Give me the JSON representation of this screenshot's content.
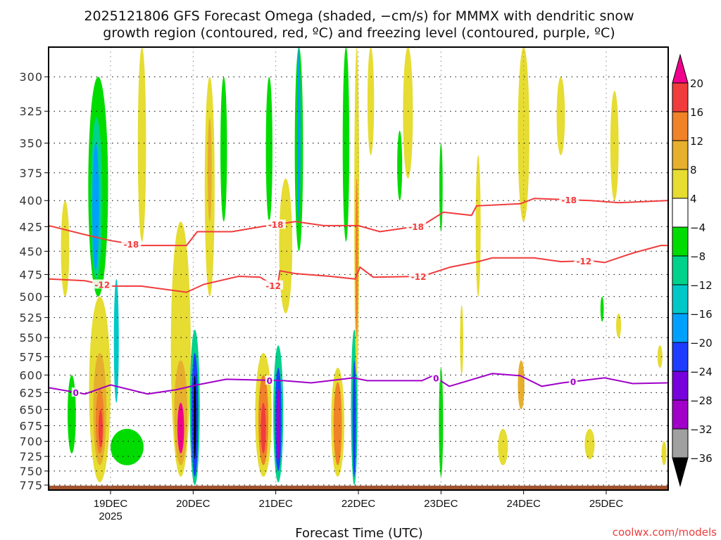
{
  "chart_data": {
    "type": "heatmap",
    "title_lines": [
      "2025121806 GFS Forecast Omega (shaded, −cm/s) for MMMX with dendritic snow",
      "growth region (contoured, red, ºC) and freezing level (contoured, purple, ºC)"
    ],
    "xlabel": "Forecast Time (UTC)",
    "x_units": "days since 19DEC 00Z",
    "xlim": [
      -0.75,
      6.75
    ],
    "x_ticks": [
      {
        "day": 0,
        "label": "19DEC",
        "sub": "2025"
      },
      {
        "day": 1,
        "label": "20DEC"
      },
      {
        "day": 2,
        "label": "21DEC"
      },
      {
        "day": 3,
        "label": "22DEC"
      },
      {
        "day": 4,
        "label": "23DEC"
      },
      {
        "day": 5,
        "label": "24DEC"
      },
      {
        "day": 6,
        "label": "25DEC"
      }
    ],
    "ylabel": "Pressure (hPa)",
    "ylim": [
      280,
      784
    ],
    "y_ticks": [
      "300",
      "325",
      "350",
      "375",
      "400",
      "425",
      "450",
      "475",
      "500",
      "525",
      "550",
      "575",
      "600",
      "625",
      "650",
      "675",
      "700",
      "725",
      "750",
      "775"
    ],
    "grid": true,
    "surface_pressure": 776,
    "colorbar": {
      "labels": [
        "20",
        "16",
        "12",
        "8",
        "4",
        "-4",
        "-8",
        "-12",
        "-16",
        "-20",
        "-24",
        "-28",
        "-32",
        "-36"
      ],
      "colors": [
        "#f03c3c",
        "#f08228",
        "#e6af2d",
        "#e6dc32",
        "#ffffff",
        "#00dc00",
        "#00d28c",
        "#00c8c8",
        "#00a0ff",
        "#1e3cff",
        "#7800dc",
        "#a000c8",
        "#a0a0a0"
      ],
      "over_color": "#f0008c",
      "under_color": "#000000"
    },
    "shading_features": [
      {
        "day": -0.15,
        "p1": 300,
        "p2": 500,
        "hw": 0.12,
        "value": -6
      },
      {
        "day": -0.17,
        "p1": 330,
        "p2": 480,
        "hw": 0.07,
        "value": -10
      },
      {
        "day": -0.18,
        "p1": 350,
        "p2": 470,
        "hw": 0.04,
        "value": -18
      },
      {
        "day": -0.55,
        "p1": 400,
        "p2": 500,
        "hw": 0.05,
        "value": 5
      },
      {
        "day": -0.47,
        "p1": 600,
        "p2": 720,
        "hw": 0.05,
        "value": -6
      },
      {
        "day": 0.2,
        "p1": 680,
        "p2": 740,
        "hw": 0.2,
        "value": -6
      },
      {
        "day": -0.13,
        "p1": 500,
        "p2": 770,
        "hw": 0.13,
        "value": 6
      },
      {
        "day": -0.13,
        "p1": 570,
        "p2": 740,
        "hw": 0.08,
        "value": 10
      },
      {
        "day": -0.13,
        "p1": 620,
        "p2": 720,
        "hw": 0.05,
        "value": 14
      },
      {
        "day": -0.12,
        "p1": 650,
        "p2": 710,
        "hw": 0.025,
        "value": 18
      },
      {
        "day": 0.07,
        "p1": 480,
        "p2": 640,
        "hw": 0.03,
        "value": -14
      },
      {
        "day": 0.85,
        "p1": 420,
        "p2": 760,
        "hw": 0.12,
        "value": 6
      },
      {
        "day": 0.85,
        "p1": 580,
        "p2": 740,
        "hw": 0.08,
        "value": 11
      },
      {
        "day": 0.85,
        "p1": 640,
        "p2": 720,
        "hw": 0.04,
        "value": 21
      },
      {
        "day": 1.02,
        "p1": 540,
        "p2": 775,
        "hw": 0.06,
        "value": -10
      },
      {
        "day": 1.02,
        "p1": 570,
        "p2": 760,
        "hw": 0.04,
        "value": -22
      },
      {
        "day": 1.02,
        "p1": 600,
        "p2": 730,
        "hw": 0.015,
        "value": -40
      },
      {
        "day": 1.2,
        "p1": 300,
        "p2": 500,
        "hw": 0.06,
        "value": 6
      },
      {
        "day": 1.2,
        "p1": 330,
        "p2": 420,
        "hw": 0.025,
        "value": 10
      },
      {
        "day": 0.38,
        "p1": 280,
        "p2": 440,
        "hw": 0.05,
        "value": 5
      },
      {
        "day": 1.37,
        "p1": 300,
        "p2": 420,
        "hw": 0.04,
        "value": -6
      },
      {
        "day": 1.85,
        "p1": 570,
        "p2": 760,
        "hw": 0.1,
        "value": 6
      },
      {
        "day": 1.85,
        "p1": 600,
        "p2": 740,
        "hw": 0.06,
        "value": 12
      },
      {
        "day": 1.85,
        "p1": 640,
        "p2": 720,
        "hw": 0.03,
        "value": 18
      },
      {
        "day": 2.03,
        "p1": 560,
        "p2": 770,
        "hw": 0.06,
        "value": -10
      },
      {
        "day": 2.03,
        "p1": 590,
        "p2": 750,
        "hw": 0.04,
        "value": -22
      },
      {
        "day": 2.03,
        "p1": 620,
        "p2": 730,
        "hw": 0.02,
        "value": -30
      },
      {
        "day": 2.28,
        "p1": 280,
        "p2": 450,
        "hw": 0.05,
        "value": -6
      },
      {
        "day": 2.28,
        "p1": 280,
        "p2": 420,
        "hw": 0.02,
        "value": -20
      },
      {
        "day": 2.12,
        "p1": 380,
        "p2": 520,
        "hw": 0.08,
        "value": 6
      },
      {
        "day": 1.92,
        "p1": 300,
        "p2": 420,
        "hw": 0.04,
        "value": -6
      },
      {
        "day": 2.75,
        "p1": 590,
        "p2": 760,
        "hw": 0.08,
        "value": 6
      },
      {
        "day": 2.75,
        "p1": 610,
        "p2": 740,
        "hw": 0.05,
        "value": 12
      },
      {
        "day": 2.95,
        "p1": 540,
        "p2": 775,
        "hw": 0.04,
        "value": -10
      },
      {
        "day": 2.95,
        "p1": 580,
        "p2": 760,
        "hw": 0.02,
        "value": -22
      },
      {
        "day": 2.98,
        "p1": 280,
        "p2": 600,
        "hw": 0.03,
        "value": 6
      },
      {
        "day": 2.98,
        "p1": 380,
        "p2": 550,
        "hw": 0.015,
        "value": 14
      },
      {
        "day": 2.85,
        "p1": 280,
        "p2": 440,
        "hw": 0.04,
        "value": -6
      },
      {
        "day": 3.6,
        "p1": 280,
        "p2": 380,
        "hw": 0.06,
        "value": 6
      },
      {
        "day": 3.15,
        "p1": 280,
        "p2": 360,
        "hw": 0.04,
        "value": 5
      },
      {
        "day": 3.5,
        "p1": 340,
        "p2": 400,
        "hw": 0.03,
        "value": -6
      },
      {
        "day": 4.0,
        "p1": 590,
        "p2": 760,
        "hw": 0.025,
        "value": -8
      },
      {
        "day": 4.0,
        "p1": 350,
        "p2": 430,
        "hw": 0.02,
        "value": -6
      },
      {
        "day": 4.25,
        "p1": 510,
        "p2": 600,
        "hw": 0.02,
        "value": 6
      },
      {
        "day": 4.45,
        "p1": 360,
        "p2": 500,
        "hw": 0.03,
        "value": 6
      },
      {
        "day": 4.75,
        "p1": 680,
        "p2": 740,
        "hw": 0.06,
        "value": 6
      },
      {
        "day": 4.97,
        "p1": 580,
        "p2": 650,
        "hw": 0.04,
        "value": 8
      },
      {
        "day": 5.0,
        "p1": 280,
        "p2": 420,
        "hw": 0.07,
        "value": 6
      },
      {
        "day": 5.45,
        "p1": 300,
        "p2": 360,
        "hw": 0.05,
        "value": 6
      },
      {
        "day": 5.8,
        "p1": 680,
        "p2": 730,
        "hw": 0.06,
        "value": 6
      },
      {
        "day": 6.1,
        "p1": 310,
        "p2": 400,
        "hw": 0.05,
        "value": 6
      },
      {
        "day": 5.95,
        "p1": 500,
        "p2": 530,
        "hw": 0.02,
        "value": -6
      },
      {
        "day": 6.15,
        "p1": 520,
        "p2": 550,
        "hw": 0.03,
        "value": 6
      },
      {
        "day": 6.65,
        "p1": 560,
        "p2": 590,
        "hw": 0.03,
        "value": 6
      },
      {
        "day": 6.7,
        "p1": 700,
        "p2": 740,
        "hw": 0.03,
        "value": 6
      }
    ],
    "contours": [
      {
        "name": "-18",
        "color": "#f03c3c",
        "label": "-18",
        "points": [
          [
            -0.75,
            424
          ],
          [
            -0.31,
            433
          ],
          [
            0,
            439
          ],
          [
            0.37,
            444
          ],
          [
            0.92,
            444
          ],
          [
            1.05,
            430
          ],
          [
            1.47,
            430
          ],
          [
            1.9,
            424
          ],
          [
            2.24,
            420
          ],
          [
            2.58,
            424
          ],
          [
            3.0,
            424
          ],
          [
            3.26,
            430
          ],
          [
            3.77,
            424
          ],
          [
            4.03,
            411
          ],
          [
            4.37,
            414
          ],
          [
            4.43,
            405
          ],
          [
            4.96,
            403
          ],
          [
            5.13,
            398
          ],
          [
            5.81,
            400
          ],
          [
            6.15,
            402
          ],
          [
            6.74,
            400
          ]
        ],
        "label_at": [
          0.25,
          2.0,
          3.7,
          5.55
        ]
      },
      {
        "name": "-12",
        "color": "#f03c3c",
        "label": "-12",
        "points": [
          [
            -0.75,
            480
          ],
          [
            -0.31,
            482
          ],
          [
            0,
            488
          ],
          [
            0.37,
            488
          ],
          [
            0.92,
            495
          ],
          [
            1.13,
            486
          ],
          [
            1.55,
            477
          ],
          [
            1.81,
            478
          ],
          [
            2.02,
            490
          ],
          [
            2.05,
            471
          ],
          [
            2.24,
            474
          ],
          [
            2.66,
            477
          ],
          [
            2.96,
            480
          ],
          [
            3.02,
            467
          ],
          [
            3.18,
            478
          ],
          [
            3.77,
            477
          ],
          [
            4.11,
            467
          ],
          [
            4.45,
            461
          ],
          [
            4.62,
            457
          ],
          [
            5.13,
            457
          ],
          [
            5.45,
            461
          ],
          [
            5.81,
            460
          ],
          [
            5.98,
            462
          ],
          [
            6.32,
            452
          ],
          [
            6.66,
            444
          ],
          [
            6.74,
            444
          ]
        ],
        "label_at": [
          -0.1,
          1.97,
          3.73,
          5.73
        ]
      },
      {
        "name": "0",
        "color": "#a000c8",
        "label": "0",
        "points": [
          [
            -0.75,
            618
          ],
          [
            -0.31,
            627
          ],
          [
            0,
            614
          ],
          [
            0.45,
            627
          ],
          [
            0.79,
            621
          ],
          [
            1.05,
            614
          ],
          [
            1.4,
            606
          ],
          [
            2.1,
            608
          ],
          [
            2.43,
            611
          ],
          [
            2.94,
            604
          ],
          [
            3.11,
            608
          ],
          [
            3.77,
            608
          ],
          [
            3.9,
            601
          ],
          [
            4.1,
            616
          ],
          [
            4.62,
            598
          ],
          [
            4.96,
            601
          ],
          [
            5.22,
            616
          ],
          [
            5.47,
            611
          ],
          [
            5.98,
            604
          ],
          [
            6.32,
            612
          ],
          [
            6.74,
            611
          ]
        ],
        "label_at": [
          -0.42,
          1.925,
          3.94,
          5.6
        ]
      }
    ]
  },
  "credit": "coolwx.com/models"
}
